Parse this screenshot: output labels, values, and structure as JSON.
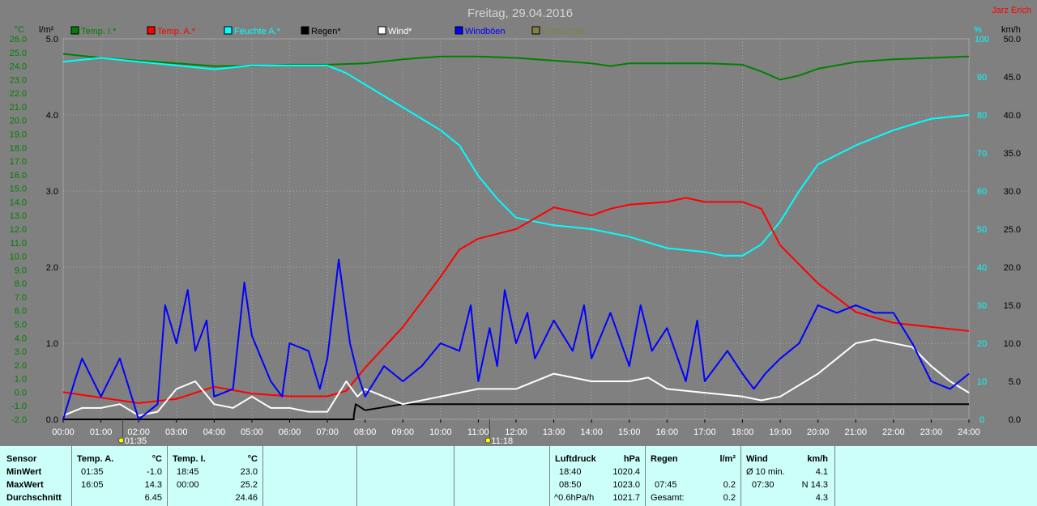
{
  "header": {
    "title": "Freitag, 29.04.2016",
    "author": "Jarz Erich"
  },
  "legend": [
    {
      "label": "Temp. I.*",
      "color": "#008000"
    },
    {
      "label": "Temp. A.*",
      "color": "#ff0000"
    },
    {
      "label": "Feuchte A.*",
      "color": "#00ffff"
    },
    {
      "label": "Regen*",
      "color": "#000000"
    },
    {
      "label": "Wind*",
      "color": "#ffffff"
    },
    {
      "label": "Windböen",
      "color": "#0000ff"
    },
    {
      "label": "Erdfeuchte",
      "color": "#808040"
    }
  ],
  "axis_units": {
    "temp": "°C",
    "rain": "l/m²",
    "hum": "%",
    "wind": "km/h"
  },
  "chart_data": {
    "type": "line",
    "x_ticks": [
      "00:00",
      "01:00",
      "02:00",
      "03:00",
      "04:00",
      "05:00",
      "06:00",
      "07:00",
      "08:00",
      "09:00",
      "10:00",
      "11:00",
      "12:00",
      "13:00",
      "14:00",
      "15:00",
      "16:00",
      "17:00",
      "18:00",
      "19:00",
      "20:00",
      "21:00",
      "22:00",
      "23:00",
      "24:00"
    ],
    "temp_ticks": [
      "26.0",
      "25.0",
      "24.0",
      "23.0",
      "22.0",
      "21.0",
      "20.0",
      "19.0",
      "18.0",
      "17.0",
      "16.0",
      "15.0",
      "14.0",
      "13.0",
      "12.0",
      "11.0",
      "10.0",
      "9.0",
      "8.0",
      "7.0",
      "6.0",
      "5.0",
      "4.0",
      "3.0",
      "2.0",
      "1.0",
      "0.0",
      "-1.0",
      "-2.0"
    ],
    "rain_ticks": [
      "5.0",
      "4.0",
      "3.0",
      "2.0",
      "1.0",
      "0.0"
    ],
    "hum_ticks": [
      "100",
      "90",
      "80",
      "70",
      "60",
      "50",
      "40",
      "30",
      "20",
      "10",
      "0"
    ],
    "wind_ticks": [
      "50.0",
      "45.0",
      "40.0",
      "35.0",
      "30.0",
      "25.0",
      "20.0",
      "15.0",
      "10.0",
      "5.0",
      "0.0"
    ],
    "temp_range": [
      -2,
      26
    ],
    "rain_range": [
      0,
      5
    ],
    "hum_range": [
      0,
      100
    ],
    "wind_range": [
      0,
      50
    ],
    "markers": [
      {
        "time": "01:35",
        "hour": 1.58
      },
      {
        "time": "11:18",
        "hour": 11.3
      }
    ],
    "series": [
      {
        "name": "Temp. I.*",
        "color": "#008000",
        "axis": "temp",
        "points": [
          [
            0,
            24.9
          ],
          [
            1,
            24.6
          ],
          [
            2,
            24.4
          ],
          [
            3,
            24.2
          ],
          [
            4,
            24.0
          ],
          [
            5,
            24.0
          ],
          [
            6,
            24.1
          ],
          [
            7,
            24.1
          ],
          [
            8,
            24.2
          ],
          [
            9,
            24.5
          ],
          [
            10,
            24.7
          ],
          [
            11,
            24.7
          ],
          [
            12,
            24.6
          ],
          [
            13,
            24.4
          ],
          [
            14,
            24.2
          ],
          [
            14.5,
            24.0
          ],
          [
            15,
            24.2
          ],
          [
            16,
            24.2
          ],
          [
            17,
            24.2
          ],
          [
            18,
            24.1
          ],
          [
            18.5,
            23.6
          ],
          [
            19,
            23.0
          ],
          [
            19.5,
            23.3
          ],
          [
            20,
            23.8
          ],
          [
            21,
            24.3
          ],
          [
            22,
            24.5
          ],
          [
            23,
            24.6
          ],
          [
            24,
            24.7
          ]
        ]
      },
      {
        "name": "Feuchte A.*",
        "color": "#00ffff",
        "axis": "hum",
        "points": [
          [
            0,
            94
          ],
          [
            1,
            95
          ],
          [
            2,
            94
          ],
          [
            3,
            93
          ],
          [
            4,
            92
          ],
          [
            5,
            93
          ],
          [
            6,
            93
          ],
          [
            7,
            93
          ],
          [
            7.5,
            91
          ],
          [
            8,
            88
          ],
          [
            9,
            82
          ],
          [
            10,
            76
          ],
          [
            10.5,
            72
          ],
          [
            11,
            64
          ],
          [
            11.5,
            58
          ],
          [
            12,
            53
          ],
          [
            13,
            51
          ],
          [
            14,
            50
          ],
          [
            15,
            48
          ],
          [
            16,
            45
          ],
          [
            17,
            44
          ],
          [
            17.5,
            43
          ],
          [
            18,
            43
          ],
          [
            18.5,
            46
          ],
          [
            19,
            52
          ],
          [
            19.5,
            60
          ],
          [
            20,
            67
          ],
          [
            21,
            72
          ],
          [
            22,
            76
          ],
          [
            23,
            79
          ],
          [
            24,
            80
          ]
        ]
      },
      {
        "name": "Temp. A.*",
        "color": "#ff0000",
        "axis": "temp",
        "points": [
          [
            0,
            0.0
          ],
          [
            1,
            -0.4
          ],
          [
            2,
            -0.8
          ],
          [
            3,
            -0.5
          ],
          [
            4,
            0.4
          ],
          [
            5,
            -0.1
          ],
          [
            6,
            -0.3
          ],
          [
            7,
            -0.3
          ],
          [
            7.5,
            0.1
          ],
          [
            8,
            1.8
          ],
          [
            9,
            4.8
          ],
          [
            10,
            8.5
          ],
          [
            10.5,
            10.5
          ],
          [
            11,
            11.3
          ],
          [
            12,
            12.0
          ],
          [
            12.5,
            12.8
          ],
          [
            13,
            13.6
          ],
          [
            14,
            13.0
          ],
          [
            14.5,
            13.5
          ],
          [
            15,
            13.8
          ],
          [
            16,
            14.0
          ],
          [
            16.5,
            14.3
          ],
          [
            17,
            14.0
          ],
          [
            18,
            14.0
          ],
          [
            18.5,
            13.5
          ],
          [
            19,
            10.8
          ],
          [
            20,
            8.0
          ],
          [
            21,
            5.9
          ],
          [
            22,
            5.1
          ],
          [
            23,
            4.8
          ],
          [
            24,
            4.5
          ]
        ]
      },
      {
        "name": "Regen*",
        "color": "#000000",
        "axis": "rain",
        "points": [
          [
            0,
            0
          ],
          [
            7.7,
            0
          ],
          [
            7.7,
            0.05
          ],
          [
            7.75,
            0.2
          ],
          [
            8,
            0.12
          ],
          [
            9,
            0.2
          ],
          [
            10,
            0.2
          ],
          [
            24,
            0.2
          ]
        ]
      },
      {
        "name": "Wind*",
        "color": "#ffffff",
        "axis": "wind",
        "points": [
          [
            0,
            0.5
          ],
          [
            0.5,
            1.5
          ],
          [
            1,
            1.5
          ],
          [
            1.5,
            2
          ],
          [
            2,
            0.5
          ],
          [
            2.5,
            1
          ],
          [
            3,
            4
          ],
          [
            3.5,
            5
          ],
          [
            4,
            2
          ],
          [
            4.5,
            1.5
          ],
          [
            5,
            3
          ],
          [
            5.5,
            1.5
          ],
          [
            6,
            1.5
          ],
          [
            6.5,
            1
          ],
          [
            7,
            1
          ],
          [
            7.5,
            5
          ],
          [
            7.8,
            3
          ],
          [
            8,
            4
          ],
          [
            9,
            2
          ],
          [
            10,
            3
          ],
          [
            11,
            4
          ],
          [
            12,
            4
          ],
          [
            13,
            6
          ],
          [
            14,
            5
          ],
          [
            15,
            5
          ],
          [
            15.5,
            5.5
          ],
          [
            16,
            4
          ],
          [
            17,
            3.5
          ],
          [
            18,
            3
          ],
          [
            18.5,
            2.5
          ],
          [
            19,
            3
          ],
          [
            20,
            6
          ],
          [
            20.5,
            8
          ],
          [
            21,
            10
          ],
          [
            21.5,
            10.5
          ],
          [
            22,
            10
          ],
          [
            22.5,
            9.5
          ],
          [
            23,
            7
          ],
          [
            23.5,
            5
          ],
          [
            24,
            3.5
          ]
        ]
      },
      {
        "name": "Windböen",
        "color": "#0000ff",
        "axis": "wind",
        "points": [
          [
            0,
            0
          ],
          [
            0.3,
            5
          ],
          [
            0.5,
            8
          ],
          [
            1,
            3
          ],
          [
            1.5,
            8
          ],
          [
            2,
            0
          ],
          [
            2.5,
            2
          ],
          [
            2.7,
            15
          ],
          [
            3,
            10
          ],
          [
            3.3,
            17
          ],
          [
            3.5,
            9
          ],
          [
            3.8,
            13
          ],
          [
            4,
            3
          ],
          [
            4.5,
            4
          ],
          [
            4.8,
            18
          ],
          [
            5,
            11
          ],
          [
            5.5,
            5
          ],
          [
            5.8,
            3
          ],
          [
            6,
            10
          ],
          [
            6.5,
            9
          ],
          [
            6.8,
            4
          ],
          [
            7,
            8
          ],
          [
            7.3,
            21
          ],
          [
            7.6,
            10
          ],
          [
            7.8,
            6
          ],
          [
            8,
            3
          ],
          [
            8.5,
            7
          ],
          [
            9,
            5
          ],
          [
            9.5,
            7
          ],
          [
            10,
            10
          ],
          [
            10.5,
            9
          ],
          [
            10.8,
            15
          ],
          [
            11,
            5
          ],
          [
            11.3,
            12
          ],
          [
            11.5,
            7
          ],
          [
            11.7,
            17
          ],
          [
            12,
            10
          ],
          [
            12.3,
            14
          ],
          [
            12.5,
            8
          ],
          [
            13,
            13
          ],
          [
            13.5,
            9
          ],
          [
            13.8,
            15
          ],
          [
            14,
            8
          ],
          [
            14.5,
            14
          ],
          [
            15,
            7
          ],
          [
            15.3,
            15
          ],
          [
            15.6,
            9
          ],
          [
            16,
            12
          ],
          [
            16.5,
            5
          ],
          [
            16.8,
            13
          ],
          [
            17,
            5
          ],
          [
            17.3,
            7
          ],
          [
            17.6,
            9
          ],
          [
            18,
            6
          ],
          [
            18.3,
            4
          ],
          [
            18.6,
            6
          ],
          [
            19,
            8
          ],
          [
            19.5,
            10
          ],
          [
            20,
            15
          ],
          [
            20.5,
            14
          ],
          [
            21,
            15
          ],
          [
            21.5,
            14
          ],
          [
            22,
            14
          ],
          [
            22.5,
            10
          ],
          [
            23,
            5
          ],
          [
            23.5,
            4
          ],
          [
            24,
            6
          ]
        ]
      }
    ]
  },
  "stats": {
    "sensor_header": "Sensor",
    "row_labels": [
      "MinWert",
      "MaxWert",
      "Durchschnitt"
    ],
    "temp_a": {
      "title": "Temp. A.",
      "unit": "°C",
      "min_time": "01:35",
      "min_val": "-1.0",
      "max_time": "16:05",
      "max_val": "14.3",
      "avg": "6.45"
    },
    "temp_i": {
      "title": "Temp. I.",
      "unit": "°C",
      "min_time": "18:45",
      "min_val": "23.0",
      "max_time": "00:00",
      "max_val": "25.2",
      "avg": "24.46"
    },
    "pressure": {
      "title": "Luftdruck",
      "unit": "hPa",
      "min_time": "18:40",
      "min_val": "1020.4",
      "max_time": "08:50",
      "max_val": "1023.0",
      "trend": "^0.6hPa/h",
      "trend_val": "1021.7"
    },
    "rain": {
      "title": "Regen",
      "unit": "l/m²",
      "time": "07:45",
      "val": "0.2",
      "total_label": "Gesamt:",
      "total": "0.2"
    },
    "wind": {
      "title": "Wind",
      "unit": "km/h",
      "avg_label": "Ø 10 min.",
      "avg_val": "4.1",
      "max_time": "07:30",
      "max_val": "N 14.3",
      "mean": "4.3"
    }
  }
}
